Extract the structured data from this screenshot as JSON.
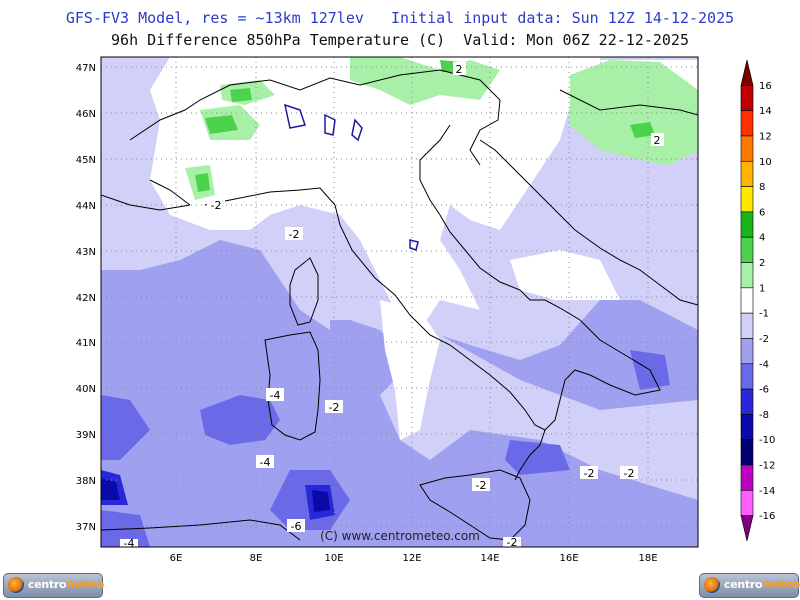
{
  "header": {
    "line1": "GFS-FV3 Model, res = ~13km 127lev   Initial input data: Sun 12Z 14-12-2025",
    "line2": "96h Difference 850hPa Temperature (C)  Valid: Mon 06Z 22-12-2025"
  },
  "map": {
    "lat_labels": [
      "47N",
      "46N",
      "45N",
      "44N",
      "43N",
      "42N",
      "41N",
      "40N",
      "39N",
      "38N",
      "37N"
    ],
    "lon_labels": [
      "6E",
      "8E",
      "10E",
      "12E",
      "14E",
      "16E",
      "18E"
    ],
    "contour_labels": [
      "2",
      "2",
      "-2",
      "-2",
      "-4",
      "-2",
      "-4",
      "-6",
      "-2",
      "-2",
      "-2",
      "-2",
      "-4"
    ],
    "copyright": "(C) www.centrometeo.com",
    "colors": {
      "land_border": "#000000",
      "grid": "#8a8a8a",
      "lakes": "#1a1aa0"
    }
  },
  "colorbar": {
    "labels": [
      "16",
      "14",
      "12",
      "10",
      "8",
      "6",
      "4",
      "2",
      "1",
      "-1",
      "-2",
      "-4",
      "-6",
      "-8",
      "-10",
      "-12",
      "-14",
      "-16"
    ],
    "colors": [
      "#7a0000",
      "#c00000",
      "#ff3000",
      "#ff7800",
      "#ffb400",
      "#ffe800",
      "#18b418",
      "#4cd24c",
      "#a8f0a8",
      "#ffffff",
      "#d0d0f8",
      "#a0a0f0",
      "#6a6ae8",
      "#2828d8",
      "#0a0aa8",
      "#000070",
      "#c000c0",
      "#ff60ff",
      "#800080"
    ]
  },
  "logos": {
    "brand_part1": "centro",
    "brand_part2": "meteo"
  }
}
